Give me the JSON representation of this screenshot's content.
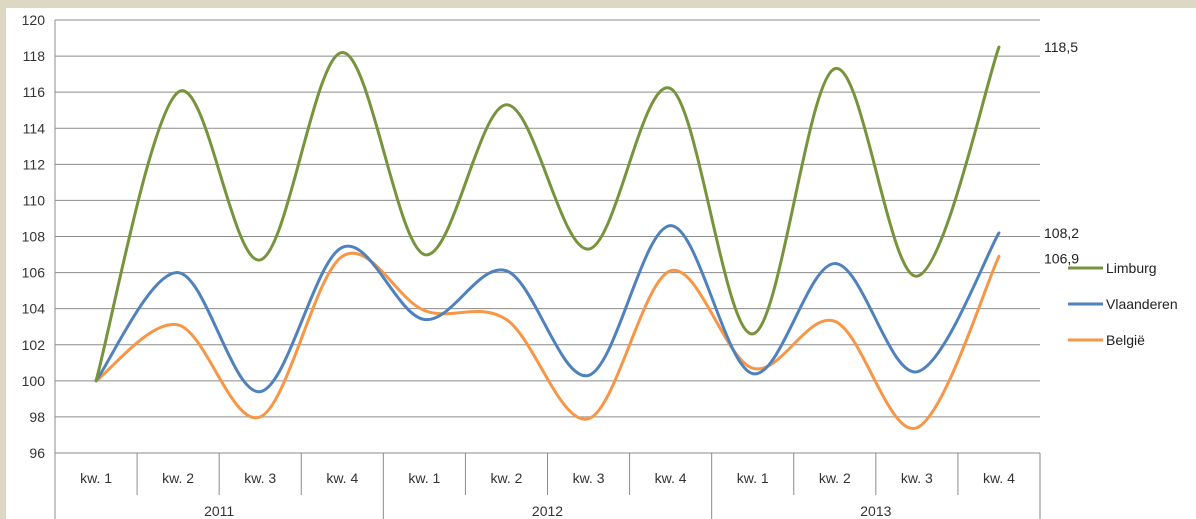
{
  "chart_data": {
    "type": "line",
    "title": "",
    "xlabel": "",
    "ylabel": "",
    "ylim": [
      96,
      120
    ],
    "y_ticks": [
      "96",
      "98",
      "100",
      "102",
      "104",
      "106",
      "108",
      "110",
      "112",
      "114",
      "116",
      "118",
      "120"
    ],
    "grid": true,
    "smooth": true,
    "legend_position": "right",
    "categories": [
      "kw. 1",
      "kw. 2",
      "kw. 3",
      "kw. 4",
      "kw. 1",
      "kw. 2",
      "kw. 3",
      "kw. 4",
      "kw. 1",
      "kw. 2",
      "kw. 3",
      "kw. 4"
    ],
    "years": [
      "2011",
      "2012",
      "2013"
    ],
    "series": [
      {
        "name": "Limburg",
        "color": "#77933c",
        "values": [
          100,
          116,
          106.7,
          118.2,
          107,
          115.3,
          107.3,
          116.2,
          102.6,
          117.3,
          105.8,
          118.5
        ],
        "end_label": "118,5"
      },
      {
        "name": "Vlaanderen",
        "color": "#4f81bd",
        "values": [
          100,
          106,
          99.4,
          107.4,
          103.4,
          106.1,
          100.3,
          108.6,
          100.4,
          106.5,
          100.5,
          108.2
        ],
        "end_label": "108,2"
      },
      {
        "name": "België",
        "color": "#f79646",
        "values": [
          100,
          103.1,
          98,
          106.9,
          103.9,
          103.4,
          97.9,
          106.1,
          100.7,
          103.3,
          97.4,
          106.9
        ],
        "end_label": "106,9"
      }
    ]
  }
}
